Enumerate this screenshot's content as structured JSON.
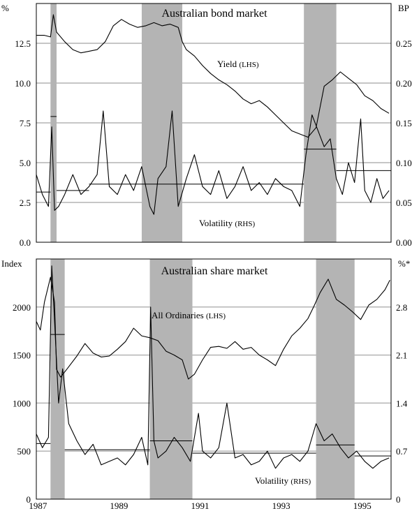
{
  "chart_data": [
    {
      "type": "line",
      "title": "Australian bond market",
      "left_axis_unit": "%",
      "right_axis_unit": "BP",
      "left_ticks": [
        "0.0",
        "2.5",
        "5.0",
        "7.5",
        "10.0",
        "12.5"
      ],
      "right_ticks": [
        "0.00",
        "0.05",
        "0.10",
        "0.15",
        "0.20",
        "0.25"
      ],
      "ylim_left": [
        0,
        15
      ],
      "ylim_right": [
        0,
        0.3
      ],
      "xlim": [
        1987.0,
        1995.75
      ],
      "grid": "horizontal",
      "shaded_periods": [
        [
          1987.35,
          1987.5
        ],
        [
          1989.6,
          1990.6
        ],
        [
          1993.6,
          1994.4
        ]
      ],
      "series": [
        {
          "name": "Yield",
          "label_suffix": "(LHS)",
          "axis": "left",
          "x": [
            1987.0,
            1987.2,
            1987.35,
            1987.42,
            1987.5,
            1987.7,
            1987.9,
            1988.1,
            1988.3,
            1988.5,
            1988.7,
            1988.9,
            1989.1,
            1989.3,
            1989.5,
            1989.7,
            1989.9,
            1990.1,
            1990.3,
            1990.5,
            1990.6,
            1990.7,
            1990.9,
            1991.1,
            1991.3,
            1991.5,
            1991.7,
            1991.9,
            1992.1,
            1992.3,
            1992.5,
            1992.7,
            1992.9,
            1993.1,
            1993.3,
            1993.5,
            1993.7,
            1993.9,
            1994.0,
            1994.1,
            1994.3,
            1994.5,
            1994.7,
            1994.9,
            1995.1,
            1995.3,
            1995.5,
            1995.7
          ],
          "values": [
            13.0,
            13.0,
            12.9,
            14.3,
            13.2,
            12.6,
            12.1,
            11.9,
            12.0,
            12.1,
            12.6,
            13.6,
            14.0,
            13.7,
            13.5,
            13.6,
            13.8,
            13.6,
            13.7,
            13.5,
            12.6,
            12.1,
            11.7,
            11.1,
            10.6,
            10.2,
            9.9,
            9.5,
            9.0,
            8.7,
            8.9,
            8.5,
            8.0,
            7.5,
            7.0,
            6.8,
            6.6,
            7.2,
            8.5,
            9.8,
            10.2,
            10.7,
            10.3,
            9.9,
            9.2,
            8.9,
            8.4,
            8.1
          ]
        },
        {
          "name": "Volatility",
          "label_suffix": "(RHS)",
          "axis": "right",
          "x": [
            1987.0,
            1987.15,
            1987.3,
            1987.38,
            1987.45,
            1987.55,
            1987.7,
            1987.9,
            1988.1,
            1988.3,
            1988.5,
            1988.65,
            1988.8,
            1989.0,
            1989.2,
            1989.4,
            1989.6,
            1989.8,
            1989.9,
            1990.0,
            1990.2,
            1990.35,
            1990.5,
            1990.7,
            1990.9,
            1991.1,
            1991.3,
            1991.5,
            1991.7,
            1991.9,
            1992.1,
            1992.3,
            1992.5,
            1992.7,
            1992.9,
            1993.1,
            1993.3,
            1993.5,
            1993.65,
            1993.8,
            1993.95,
            1994.1,
            1994.25,
            1994.4,
            1994.55,
            1994.7,
            1994.85,
            1995.0,
            1995.1,
            1995.25,
            1995.4,
            1995.55,
            1995.7
          ],
          "values": [
            0.085,
            0.06,
            0.045,
            0.145,
            0.04,
            0.045,
            0.06,
            0.085,
            0.06,
            0.07,
            0.085,
            0.165,
            0.07,
            0.06,
            0.085,
            0.065,
            0.095,
            0.045,
            0.035,
            0.08,
            0.095,
            0.165,
            0.045,
            0.08,
            0.11,
            0.07,
            0.06,
            0.09,
            0.055,
            0.07,
            0.095,
            0.065,
            0.075,
            0.06,
            0.08,
            0.07,
            0.065,
            0.045,
            0.11,
            0.16,
            0.14,
            0.12,
            0.13,
            0.08,
            0.06,
            0.1,
            0.075,
            0.155,
            0.065,
            0.05,
            0.08,
            0.055,
            0.065
          ]
        }
      ],
      "period_averages": [
        {
          "axis": "right",
          "x": [
            1987.0,
            1987.35
          ],
          "value": 0.063
        },
        {
          "axis": "right",
          "x": [
            1987.35,
            1987.5
          ],
          "value": 0.158
        },
        {
          "axis": "right",
          "x": [
            1987.5,
            1988.3
          ],
          "value": 0.065
        },
        {
          "axis": "right",
          "x": [
            1988.3,
            1993.6
          ],
          "value": 0.073
        },
        {
          "axis": "right",
          "x": [
            1993.6,
            1994.4
          ],
          "value": 0.117
        },
        {
          "axis": "right",
          "x": [
            1994.4,
            1995.75
          ],
          "value": 0.09
        }
      ]
    },
    {
      "type": "line",
      "title": "Australian share market",
      "left_axis_unit": "Index",
      "right_axis_unit": "%*",
      "left_ticks": [
        "0",
        "500",
        "1000",
        "1500",
        "2000"
      ],
      "right_ticks": [
        "0",
        "0.7",
        "1.4",
        "2.1",
        "2.8"
      ],
      "ylim_left": [
        0,
        2500
      ],
      "ylim_right": [
        0,
        3.5
      ],
      "xlim": [
        1987.0,
        1995.75
      ],
      "x_ticks": [
        "1987",
        "1989",
        "1991",
        "1993",
        "1995"
      ],
      "grid": "horizontal",
      "shaded_periods": [
        [
          1987.35,
          1987.7
        ],
        [
          1989.8,
          1990.85
        ],
        [
          1993.9,
          1994.85
        ]
      ],
      "series": [
        {
          "name": "All Ordinaries",
          "label_suffix": "(LHS)",
          "axis": "left",
          "x": [
            1987.0,
            1987.1,
            1987.2,
            1987.35,
            1987.45,
            1987.5,
            1987.6,
            1987.75,
            1988.0,
            1988.2,
            1988.4,
            1988.6,
            1988.8,
            1989.0,
            1989.2,
            1989.4,
            1989.6,
            1989.8,
            1990.0,
            1990.2,
            1990.4,
            1990.6,
            1990.75,
            1990.9,
            1991.1,
            1991.3,
            1991.5,
            1991.7,
            1991.9,
            1992.1,
            1992.3,
            1992.5,
            1992.7,
            1992.9,
            1993.1,
            1993.3,
            1993.5,
            1993.7,
            1993.85,
            1994.0,
            1994.2,
            1994.4,
            1994.6,
            1994.8,
            1995.0,
            1995.2,
            1995.4,
            1995.6,
            1995.72
          ],
          "values": [
            1850,
            1760,
            2050,
            2310,
            2050,
            1350,
            1270,
            1350,
            1490,
            1620,
            1520,
            1480,
            1490,
            1560,
            1640,
            1780,
            1700,
            1680,
            1650,
            1540,
            1500,
            1450,
            1250,
            1300,
            1450,
            1580,
            1590,
            1570,
            1640,
            1560,
            1580,
            1500,
            1450,
            1390,
            1560,
            1700,
            1780,
            1880,
            2010,
            2150,
            2290,
            2080,
            2020,
            1950,
            1870,
            2020,
            2080,
            2180,
            2280
          ]
        },
        {
          "name": "Volatility",
          "label_suffix": "(RHS)",
          "axis": "right",
          "x": [
            1987.0,
            1987.15,
            1987.3,
            1987.38,
            1987.45,
            1987.55,
            1987.65,
            1987.8,
            1988.0,
            1988.2,
            1988.4,
            1988.6,
            1988.8,
            1989.0,
            1989.2,
            1989.4,
            1989.6,
            1989.75,
            1989.82,
            1989.9,
            1990.0,
            1990.2,
            1990.4,
            1990.6,
            1990.8,
            1991.0,
            1991.1,
            1991.3,
            1991.5,
            1991.7,
            1991.9,
            1992.1,
            1992.3,
            1992.5,
            1992.7,
            1992.9,
            1993.1,
            1993.3,
            1993.5,
            1993.7,
            1993.9,
            1994.1,
            1994.3,
            1994.5,
            1994.7,
            1994.9,
            1995.1,
            1995.3,
            1995.5,
            1995.7
          ],
          "values": [
            0.95,
            0.75,
            0.9,
            3.4,
            2.6,
            1.4,
            1.9,
            1.1,
            0.85,
            0.65,
            0.8,
            0.5,
            0.55,
            0.6,
            0.5,
            0.65,
            0.9,
            0.5,
            2.8,
            0.85,
            0.6,
            0.7,
            0.9,
            0.75,
            0.55,
            1.25,
            0.7,
            0.6,
            0.75,
            1.4,
            0.6,
            0.65,
            0.5,
            0.55,
            0.7,
            0.45,
            0.6,
            0.65,
            0.55,
            0.7,
            1.1,
            0.85,
            0.95,
            0.75,
            0.6,
            0.7,
            0.55,
            0.45,
            0.55,
            0.6
          ]
        }
      ],
      "period_averages": [
        {
          "axis": "right",
          "x": [
            1987.0,
            1987.35
          ],
          "value": 0.81
        },
        {
          "axis": "right",
          "x": [
            1987.35,
            1987.7
          ],
          "value": 2.4
        },
        {
          "axis": "right",
          "x": [
            1987.7,
            1989.8
          ],
          "value": 0.72
        },
        {
          "axis": "right",
          "x": [
            1989.8,
            1990.85
          ],
          "value": 0.85
        },
        {
          "axis": "right",
          "x": [
            1990.85,
            1993.9
          ],
          "value": 0.67
        },
        {
          "axis": "right",
          "x": [
            1993.9,
            1994.85
          ],
          "value": 0.79
        },
        {
          "axis": "right",
          "x": [
            1994.85,
            1995.75
          ],
          "value": 0.63
        }
      ]
    }
  ]
}
